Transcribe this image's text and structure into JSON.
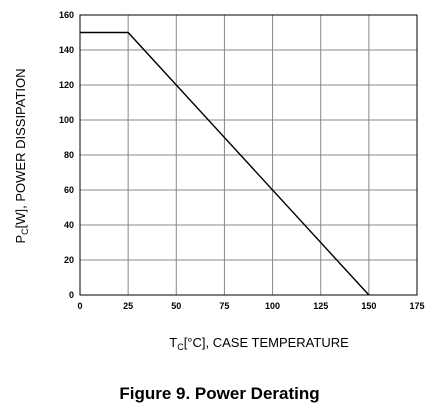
{
  "chart_data": {
    "type": "line",
    "caption": "Figure 9. Power Derating",
    "xlabel": {
      "main": "T",
      "sub": "C",
      "rest": "[°C], CASE TEMPERATURE"
    },
    "ylabel": {
      "main": "P",
      "sub": "C",
      "rest": "[W], POWER DISSIPATION"
    },
    "xlim": [
      0,
      175
    ],
    "ylim": [
      0,
      160
    ],
    "xticks": [
      0,
      25,
      50,
      75,
      100,
      125,
      150,
      175
    ],
    "yticks": [
      0,
      20,
      40,
      60,
      80,
      100,
      120,
      140,
      160
    ],
    "grid": true,
    "series": [
      {
        "x": [
          0,
          25,
          150
        ],
        "y": [
          150,
          150,
          0
        ]
      }
    ]
  }
}
